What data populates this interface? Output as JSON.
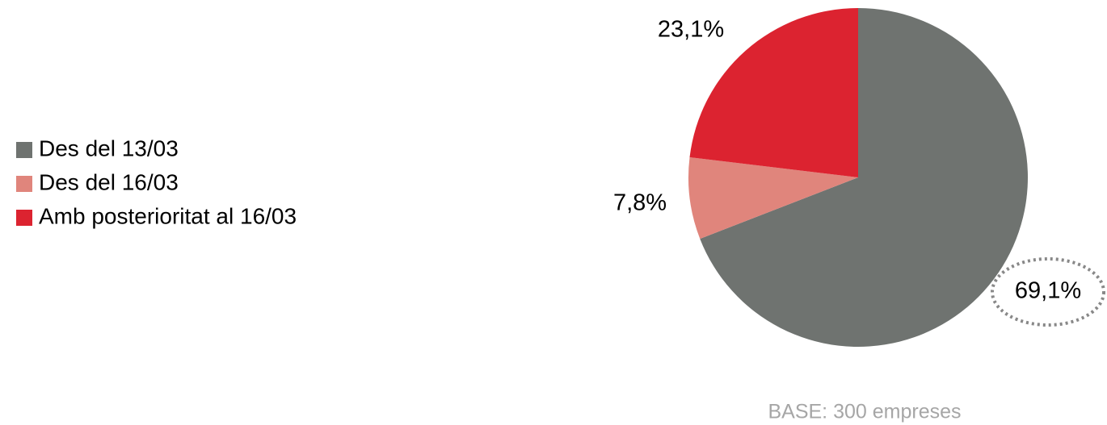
{
  "chart_data": {
    "type": "pie",
    "categories": [
      "Des del 13/03",
      "Des del 16/03",
      "Amb posterioritat al 16/03"
    ],
    "values": [
      69.1,
      7.8,
      23.1
    ],
    "value_labels": [
      "69,1%",
      "7,8%",
      "23,1%"
    ],
    "colors": [
      "#6f7370",
      "#e0857c",
      "#dc2330"
    ],
    "legend": "left",
    "source": "BASE: 300 empreses"
  }
}
